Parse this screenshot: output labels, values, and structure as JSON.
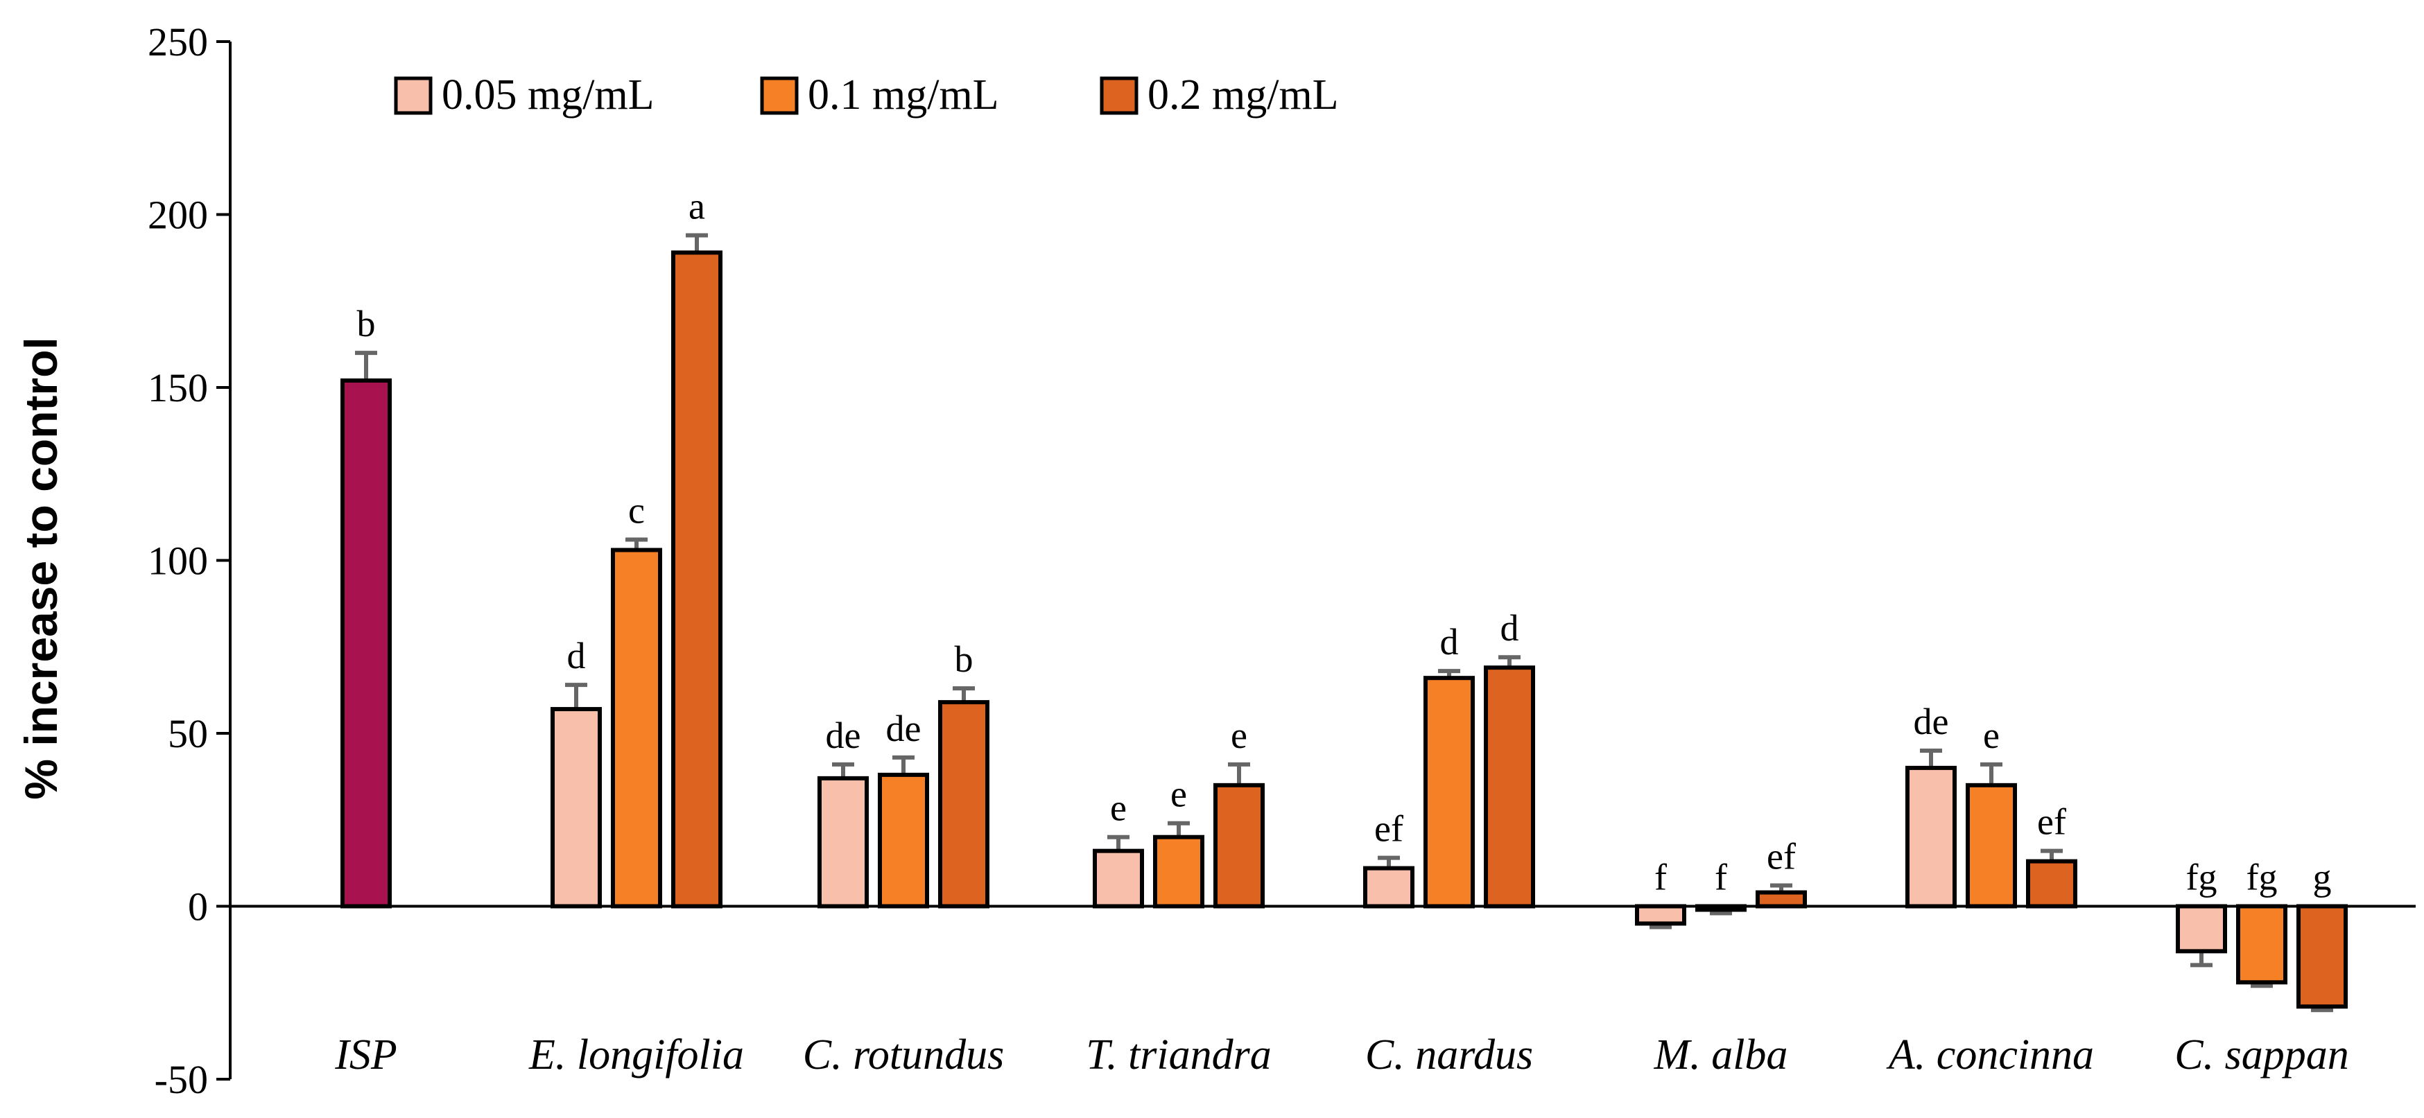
{
  "chart_data": {
    "type": "bar",
    "title": "",
    "xlabel": "",
    "ylabel": "% increase to control",
    "ylim": [
      -50,
      250
    ],
    "yticks": [
      250,
      200,
      150,
      100,
      50,
      0,
      -50
    ],
    "legend_position": "top-left",
    "categories": [
      "ISP",
      "E. longifolia",
      "C. rotundus",
      "T. triandra",
      "C. nardus",
      "M. alba",
      "A. concinna",
      "C. sappan"
    ],
    "series": [
      {
        "name": "0.05 mg/mL",
        "color": "#F8BFAA",
        "values": [
          null,
          57,
          37,
          16,
          11,
          -5,
          40,
          -13
        ],
        "errors": [
          null,
          7,
          4,
          4,
          3,
          1,
          5,
          4
        ],
        "labels": [
          null,
          "d",
          "de",
          "e",
          "ef",
          "f",
          "de",
          "fg"
        ]
      },
      {
        "name": "0.1 mg/mL",
        "color": "#F68026",
        "values": [
          null,
          103,
          38,
          20,
          66,
          -1,
          35,
          -22
        ],
        "errors": [
          null,
          3,
          5,
          4,
          2,
          1,
          6,
          1
        ],
        "labels": [
          null,
          "c",
          "de",
          "e",
          "d",
          "f",
          "e",
          "fg"
        ]
      },
      {
        "name": "0.2 mg/mL",
        "color": "#DC6420",
        "values": [
          null,
          189,
          59,
          35,
          69,
          4,
          13,
          -29
        ],
        "errors": [
          null,
          5,
          4,
          6,
          3,
          2,
          3,
          1
        ],
        "labels": [
          null,
          "a",
          "b",
          "e",
          "d",
          "ef",
          "ef",
          "g"
        ]
      }
    ],
    "reference": {
      "name": "ISP",
      "color": "#A8124F",
      "value": 152,
      "error": 8,
      "label": "b"
    }
  }
}
